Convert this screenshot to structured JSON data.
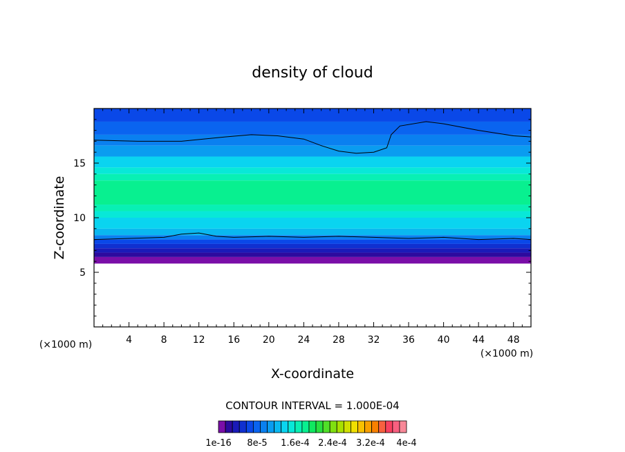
{
  "chart_data": {
    "type": "heatmap",
    "title": "density of cloud",
    "xlabel": "X-coordinate",
    "ylabel": "Z-coordinate",
    "x_unit": "(×1000 m)",
    "z_unit": "(×1000 m)",
    "xlim": [
      0,
      50
    ],
    "ylim": [
      0,
      20
    ],
    "x_ticks": [
      4,
      8,
      12,
      16,
      20,
      24,
      28,
      32,
      36,
      40,
      44,
      48
    ],
    "y_ticks": [
      5,
      10,
      15
    ],
    "contour_interval_label": "CONTOUR INTERVAL = 1.000E-04",
    "colorbar": {
      "labels": [
        "1e-16",
        "8e-5",
        "1.6e-4",
        "2.4e-4",
        "3.2e-4",
        "4e-4"
      ],
      "colors": [
        "#7a0ea8",
        "#2c0a9e",
        "#1a1ab8",
        "#1030d0",
        "#0a48e8",
        "#0a64f0",
        "#0a80f0",
        "#0a9cf0",
        "#0ab8f0",
        "#0ad4f0",
        "#08e8d8",
        "#08f0b4",
        "#08f090",
        "#10e860",
        "#28e040",
        "#50e028",
        "#80e010",
        "#a8e000",
        "#d0e000",
        "#f0e000",
        "#f8c000",
        "#f8a000",
        "#f88000",
        "#f86040",
        "#f84060",
        "#f86080",
        "#f88898"
      ]
    },
    "layers": [
      {
        "z_bottom": 18.8,
        "z_top": 20.0,
        "color": "#0a48e8"
      },
      {
        "z_bottom": 17.6,
        "z_top": 18.8,
        "color": "#0a64f0"
      },
      {
        "z_bottom": 16.6,
        "z_top": 17.6,
        "color": "#0a80f0"
      },
      {
        "z_bottom": 15.6,
        "z_top": 16.6,
        "color": "#0a9cf0"
      },
      {
        "z_bottom": 14.6,
        "z_top": 15.6,
        "color": "#0ad4f0"
      },
      {
        "z_bottom": 14.0,
        "z_top": 14.6,
        "color": "#08e8d8"
      },
      {
        "z_bottom": 13.4,
        "z_top": 14.0,
        "color": "#08f0b4"
      },
      {
        "z_bottom": 11.2,
        "z_top": 13.4,
        "color": "#08f090"
      },
      {
        "z_bottom": 10.6,
        "z_top": 11.2,
        "color": "#08f0b4"
      },
      {
        "z_bottom": 10.0,
        "z_top": 10.6,
        "color": "#08e8d8"
      },
      {
        "z_bottom": 9.0,
        "z_top": 10.0,
        "color": "#0ad4f0"
      },
      {
        "z_bottom": 8.4,
        "z_top": 9.0,
        "color": "#0ab8f0"
      },
      {
        "z_bottom": 8.0,
        "z_top": 8.4,
        "color": "#0a80f0"
      },
      {
        "z_bottom": 7.6,
        "z_top": 8.0,
        "color": "#0a48e8"
      },
      {
        "z_bottom": 7.2,
        "z_top": 7.6,
        "color": "#1030d0"
      },
      {
        "z_bottom": 6.8,
        "z_top": 7.2,
        "color": "#1a1ab8"
      },
      {
        "z_bottom": 6.4,
        "z_top": 6.8,
        "color": "#2c0a9e"
      },
      {
        "z_bottom": 5.8,
        "z_top": 6.4,
        "color": "#7a0ea8"
      }
    ],
    "contour_upper": [
      [
        0,
        17.1
      ],
      [
        5,
        17.0
      ],
      [
        10,
        17.0
      ],
      [
        15,
        17.4
      ],
      [
        18,
        17.6
      ],
      [
        21,
        17.5
      ],
      [
        24,
        17.2
      ],
      [
        26,
        16.6
      ],
      [
        28,
        16.1
      ],
      [
        30,
        15.9
      ],
      [
        32,
        16.0
      ],
      [
        33.5,
        16.4
      ],
      [
        34,
        17.6
      ],
      [
        35,
        18.4
      ],
      [
        38,
        18.8
      ],
      [
        40,
        18.6
      ],
      [
        44,
        18.0
      ],
      [
        48,
        17.5
      ],
      [
        50,
        17.4
      ]
    ],
    "contour_lower": [
      [
        0,
        8.0
      ],
      [
        4,
        8.1
      ],
      [
        8,
        8.2
      ],
      [
        10,
        8.5
      ],
      [
        12,
        8.6
      ],
      [
        14,
        8.3
      ],
      [
        16,
        8.2
      ],
      [
        20,
        8.3
      ],
      [
        24,
        8.2
      ],
      [
        28,
        8.3
      ],
      [
        32,
        8.2
      ],
      [
        36,
        8.1
      ],
      [
        40,
        8.2
      ],
      [
        44,
        8.0
      ],
      [
        48,
        8.1
      ],
      [
        50,
        8.0
      ]
    ]
  }
}
